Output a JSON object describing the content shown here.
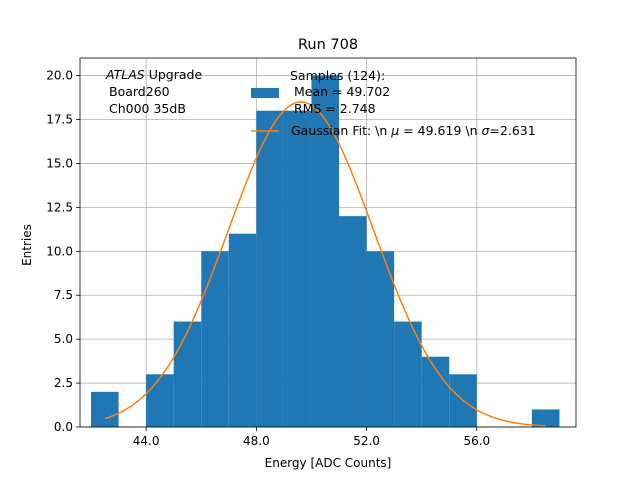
{
  "chart_data": {
    "type": "bar",
    "title": "Run 708",
    "xlabel": "Energy [ADC Counts]",
    "ylabel": "Entries",
    "xlim": [
      41.6,
      59.6
    ],
    "ylim": [
      0,
      21
    ],
    "grid": true,
    "x_ticks": [
      44,
      48,
      52,
      56
    ],
    "x_tick_labels": [
      "44.0",
      "48.0",
      "52.0",
      "56.0"
    ],
    "y_ticks": [
      0,
      2.5,
      5,
      7.5,
      10,
      12.5,
      15,
      17.5,
      20
    ],
    "y_tick_labels": [
      "0.0",
      "2.5",
      "5.0",
      "7.5",
      "10.0",
      "12.5",
      "15.0",
      "17.5",
      "20.0"
    ],
    "bin_edges": [
      42,
      43,
      44,
      45,
      46,
      47,
      48,
      49,
      50,
      51,
      52,
      53,
      54,
      55,
      56,
      57,
      58,
      59
    ],
    "counts": [
      2,
      0,
      3,
      6,
      10,
      11,
      18,
      18,
      20,
      12,
      10,
      6,
      4,
      3,
      0,
      0,
      1
    ],
    "annotation": {
      "atlas_word": "ATLAS",
      "upgrade_word": "Upgrade",
      "board": "Board260",
      "channel": "Ch000 35dB"
    },
    "legend": {
      "placement": "top-right",
      "histogram_label_lines": [
        "Samples (124):",
        " Mean = 49.702",
        " RMS = 2.748"
      ],
      "fit_label_prefix": "Gaussian Fit: \\n ",
      "mu_symbol": "μ",
      "fit_label_mid": " = 49.619 \\n ",
      "sigma_symbol": "σ",
      "fit_label_suffix": "=2.631"
    },
    "gaussian_fit": {
      "mu": 49.619,
      "sigma": 2.631,
      "amplitude": 18.5,
      "x_range": [
        42.5,
        58.5
      ]
    },
    "colors": {
      "histogram": "#1f77b4",
      "fit": "#ff7f0e",
      "grid": "#b0b0b0"
    }
  }
}
